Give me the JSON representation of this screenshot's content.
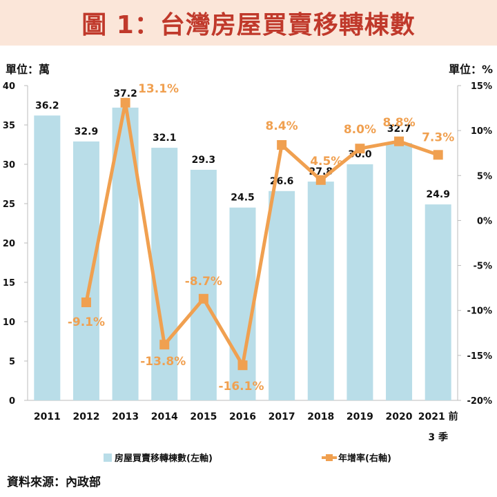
{
  "title": "圖 1：台灣房屋買賣移轉棟數",
  "unit_left": "單位：萬",
  "unit_right": "單位：%",
  "source": "資料來源：內政部",
  "colors": {
    "bar": "#b9dde8",
    "line": "#f0a050",
    "line_label": "#f0a050",
    "title": "#c0392b",
    "title_band": "#fbe6d9"
  },
  "chart_data": {
    "type": "bar+line",
    "categories": [
      "2011",
      "2012",
      "2013",
      "2014",
      "2015",
      "2016",
      "2017",
      "2018",
      "2019",
      "2020",
      "2021 前\n3 季"
    ],
    "series": [
      {
        "name": "房屋買賣移轉棟數(左軸)",
        "type": "bar",
        "axis": "left",
        "values": [
          36.2,
          32.9,
          37.2,
          32.1,
          29.3,
          24.5,
          26.6,
          27.8,
          30.0,
          32.7,
          24.9
        ],
        "labels": [
          "36.2",
          "32.9",
          "37.2",
          "32.1",
          "29.3",
          "24.5",
          "26.6",
          "27.8",
          "30.0",
          "32.7",
          "24.9"
        ]
      },
      {
        "name": "年增率(右軸)",
        "type": "line",
        "axis": "right",
        "values": [
          null,
          -9.1,
          13.1,
          -13.8,
          -8.7,
          -16.1,
          8.4,
          4.5,
          8.0,
          8.8,
          7.3
        ],
        "labels": [
          "",
          "-9.1%",
          "13.1%",
          "-13.8%",
          "-8.7%",
          "-16.1%",
          "8.4%",
          "4.5%",
          "8.0%",
          "8.8%",
          "7.3%"
        ]
      }
    ],
    "y_left": {
      "min": 0,
      "max": 40,
      "ticks": [
        "0",
        "5",
        "10",
        "15",
        "20",
        "25",
        "30",
        "35",
        "40"
      ]
    },
    "y_right": {
      "min": -20,
      "max": 15,
      "ticks": [
        "-20%",
        "-15%",
        "-10%",
        "-5%",
        "0%",
        "5%",
        "10%",
        "15%"
      ]
    },
    "legend_position": "bottom",
    "grid": false
  }
}
